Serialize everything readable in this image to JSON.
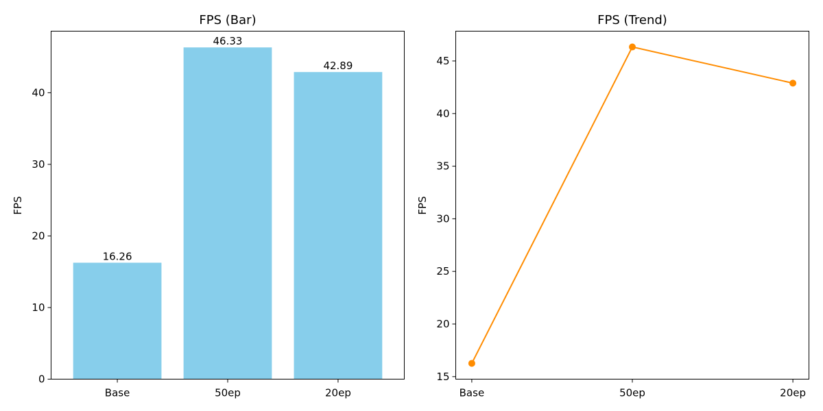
{
  "chart_data": [
    {
      "type": "bar",
      "title": "FPS (Bar)",
      "xlabel": "",
      "ylabel": "FPS",
      "categories": [
        "Base",
        "50ep",
        "20ep"
      ],
      "values": [
        16.26,
        46.33,
        42.89
      ],
      "value_labels": [
        "16.26",
        "46.33",
        "42.89"
      ],
      "ylim": [
        0,
        48.6
      ],
      "yticks": [
        0,
        10,
        20,
        30,
        40
      ],
      "color": "#87ceeb",
      "grid": false
    },
    {
      "type": "line",
      "title": "FPS (Trend)",
      "xlabel": "",
      "ylabel": "FPS",
      "categories": [
        "Base",
        "50ep",
        "20ep"
      ],
      "values": [
        16.26,
        46.33,
        42.89
      ],
      "ylim": [
        14.76,
        47.83
      ],
      "yticks": [
        15,
        20,
        25,
        30,
        35,
        40,
        45
      ],
      "color": "#ff8c00",
      "marker": "circle",
      "grid": false
    }
  ]
}
